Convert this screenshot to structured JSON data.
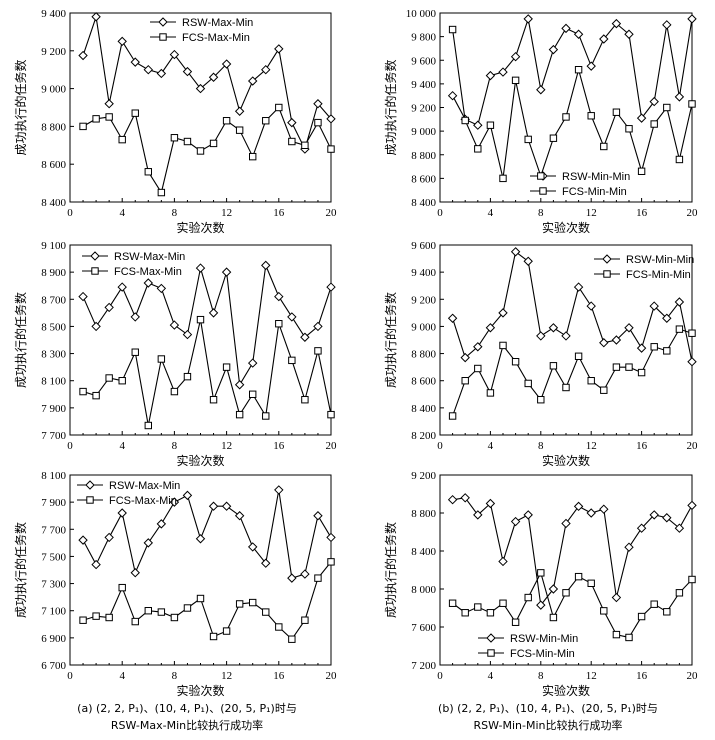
{
  "chart_data": [
    {
      "type": "line",
      "xlabel": "实验次数",
      "ylabel": "成功执行的任务数",
      "xlim": [
        0,
        20
      ],
      "xticks": [
        0,
        4,
        8,
        12,
        16,
        20
      ],
      "ylim": [
        8400,
        9400
      ],
      "yticks": [
        8400,
        8600,
        8800,
        9000,
        9200,
        9400
      ],
      "ytick_labels": [
        "8 400",
        "8 600",
        "8 800",
        "9 000",
        "9 200",
        "9 400"
      ],
      "x": [
        1,
        2,
        3,
        4,
        5,
        6,
        7,
        8,
        9,
        10,
        11,
        12,
        13,
        14,
        15,
        16,
        17,
        18,
        19,
        20
      ],
      "series": [
        {
          "name": "RSW-Max-Min",
          "marker": "diamond",
          "values": [
            9175,
            9380,
            8920,
            9250,
            9140,
            9100,
            9080,
            9180,
            9090,
            9000,
            9060,
            9130,
            8880,
            9040,
            9100,
            9210,
            8820,
            8680,
            8920,
            8840
          ]
        },
        {
          "name": "FCS-Max-Min",
          "marker": "square",
          "values": [
            8800,
            8840,
            8850,
            8730,
            8870,
            8560,
            8450,
            8740,
            8720,
            8670,
            8710,
            8830,
            8780,
            8640,
            8830,
            8900,
            8720,
            8700,
            8820,
            8680
          ]
        }
      ]
    },
    {
      "type": "line",
      "xlabel": "实验次数",
      "ylabel": "成功执行的任务数",
      "xlim": [
        0,
        20
      ],
      "xticks": [
        0,
        4,
        8,
        12,
        16,
        20
      ],
      "ylim": [
        8400,
        10000
      ],
      "yticks": [
        8400,
        8600,
        8800,
        9000,
        9200,
        9400,
        9600,
        9800,
        10000
      ],
      "ytick_labels": [
        "8 400",
        "8 600",
        "8 800",
        "9 000",
        "9 200",
        "9 400",
        "9 600",
        "9 800",
        "10 000"
      ],
      "x": [
        1,
        2,
        3,
        4,
        5,
        6,
        7,
        8,
        9,
        10,
        11,
        12,
        13,
        14,
        15,
        16,
        17,
        18,
        19,
        20
      ],
      "series": [
        {
          "name": "RSW-Min-Min",
          "marker": "diamond",
          "values": [
            9300,
            9100,
            9050,
            9470,
            9500,
            9630,
            9950,
            9350,
            9690,
            9870,
            9820,
            9550,
            9780,
            9910,
            9820,
            9110,
            9250,
            9900,
            9290,
            9950
          ]
        },
        {
          "name": "FCS-Min-Min",
          "marker": "square",
          "values": [
            9860,
            9090,
            8850,
            9050,
            8600,
            9430,
            8930,
            8620,
            8940,
            9120,
            9520,
            9130,
            8870,
            9160,
            9020,
            8660,
            9060,
            9200,
            8760,
            9230
          ]
        }
      ]
    },
    {
      "type": "line",
      "xlabel": "实验次数",
      "ylabel": "成功执行的任务数",
      "xlim": [
        0,
        20
      ],
      "xticks": [
        0,
        4,
        8,
        12,
        16,
        20
      ],
      "ylim": [
        7700,
        9100
      ],
      "yticks": [
        7700,
        7900,
        8100,
        8300,
        8500,
        8700,
        8900,
        9100
      ],
      "ytick_labels": [
        "7 700",
        "7 900",
        "8 100",
        "8 300",
        "8 500",
        "8 700",
        "8 900",
        "9 100"
      ],
      "x": [
        1,
        2,
        3,
        4,
        5,
        6,
        7,
        8,
        9,
        10,
        11,
        12,
        13,
        14,
        15,
        16,
        17,
        18,
        19,
        20
      ],
      "series": [
        {
          "name": "RSW-Max-Min",
          "marker": "diamond",
          "values": [
            8720,
            8500,
            8640,
            8790,
            8570,
            8820,
            8780,
            8510,
            8440,
            8930,
            8600,
            8900,
            8070,
            8230,
            8950,
            8720,
            8570,
            8420,
            8500,
            8790
          ]
        },
        {
          "name": "FCS-Max-Min",
          "marker": "square",
          "values": [
            8020,
            7990,
            8120,
            8100,
            8310,
            7770,
            8260,
            8020,
            8130,
            8550,
            7960,
            8200,
            7850,
            8000,
            7840,
            8520,
            8250,
            7960,
            8320,
            7850
          ]
        }
      ]
    },
    {
      "type": "line",
      "xlabel": "实验次数",
      "ylabel": "成功执行的任务数",
      "xlim": [
        0,
        20
      ],
      "xticks": [
        0,
        4,
        8,
        12,
        16,
        20
      ],
      "ylim": [
        8200,
        9600
      ],
      "yticks": [
        8200,
        8400,
        8600,
        8800,
        9000,
        9200,
        9400,
        9600
      ],
      "ytick_labels": [
        "8 200",
        "8 400",
        "8 600",
        "8 800",
        "9 000",
        "9 200",
        "9 400",
        "9 600"
      ],
      "x": [
        1,
        2,
        3,
        4,
        5,
        6,
        7,
        8,
        9,
        10,
        11,
        12,
        13,
        14,
        15,
        16,
        17,
        18,
        19,
        20
      ],
      "series": [
        {
          "name": "RSW-Min-Min",
          "marker": "diamond",
          "values": [
            9060,
            8770,
            8850,
            8990,
            9100,
            9550,
            9480,
            8930,
            8990,
            8930,
            9290,
            9150,
            8880,
            8900,
            8990,
            8840,
            9150,
            9060,
            9180,
            8740
          ]
        },
        {
          "name": "FCS-Min-Min",
          "marker": "square",
          "values": [
            8340,
            8600,
            8690,
            8510,
            8860,
            8740,
            8580,
            8460,
            8710,
            8550,
            8780,
            8600,
            8530,
            8700,
            8700,
            8660,
            8850,
            8820,
            8980,
            8950
          ]
        }
      ]
    },
    {
      "type": "line",
      "xlabel": "实验次数",
      "ylabel": "成功执行的任务数",
      "xlim": [
        0,
        20
      ],
      "xticks": [
        0,
        4,
        8,
        12,
        16,
        20
      ],
      "ylim": [
        6700,
        8100
      ],
      "yticks": [
        6700,
        6900,
        7100,
        7300,
        7500,
        7700,
        7900,
        8100
      ],
      "ytick_labels": [
        "6 700",
        "6 900",
        "7 100",
        "7 300",
        "7 500",
        "7 700",
        "7 900",
        "8 100"
      ],
      "x": [
        1,
        2,
        3,
        4,
        5,
        6,
        7,
        8,
        9,
        10,
        11,
        12,
        13,
        14,
        15,
        16,
        17,
        18,
        19,
        20
      ],
      "series": [
        {
          "name": "RSW-Max-Min",
          "marker": "diamond",
          "values": [
            7620,
            7440,
            7640,
            7820,
            7380,
            7600,
            7740,
            7900,
            7950,
            7630,
            7870,
            7870,
            7800,
            7570,
            7450,
            7990,
            7340,
            7370,
            7800,
            7640
          ]
        },
        {
          "name": "FCS-Max-Min",
          "marker": "square",
          "values": [
            7030,
            7060,
            7050,
            7270,
            7020,
            7100,
            7090,
            7050,
            7120,
            7190,
            6910,
            6950,
            7150,
            7160,
            7090,
            6980,
            6890,
            7030,
            7340,
            7460
          ]
        }
      ]
    },
    {
      "type": "line",
      "xlabel": "实验次数",
      "ylabel": "成功执行的任务数",
      "xlim": [
        0,
        20
      ],
      "xticks": [
        0,
        4,
        8,
        12,
        16,
        20
      ],
      "ylim": [
        7200,
        9200
      ],
      "yticks": [
        7200,
        7600,
        8000,
        8400,
        8800,
        9200
      ],
      "ytick_labels": [
        "7 200",
        "7 600",
        "8 000",
        "8 400",
        "8 800",
        "9 200"
      ],
      "x": [
        1,
        2,
        3,
        4,
        5,
        6,
        7,
        8,
        9,
        10,
        11,
        12,
        13,
        14,
        15,
        16,
        17,
        18,
        19,
        20
      ],
      "series": [
        {
          "name": "RSW-Min-Min",
          "marker": "diamond",
          "values": [
            8940,
            8960,
            8780,
            8900,
            8290,
            8710,
            8780,
            7830,
            8000,
            8690,
            8870,
            8800,
            8840,
            7910,
            8440,
            8640,
            8780,
            8750,
            8640,
            8880
          ]
        },
        {
          "name": "FCS-Min-Min",
          "marker": "square",
          "values": [
            7850,
            7750,
            7810,
            7750,
            7850,
            7650,
            7910,
            8170,
            7700,
            7960,
            8130,
            8060,
            7770,
            7520,
            7490,
            7710,
            7840,
            7760,
            7960,
            8100
          ]
        }
      ]
    }
  ],
  "captions": {
    "left_line1": "(a) (2, 2, P₁)、(10, 4, P₁)、(20, 5, P₁)时与",
    "left_line2": "RSW-Max-Min比较执行成功率",
    "right_line1": "(b) (2, 2, P₁)、(10, 4, P₁)、(20, 5, P₁)时与",
    "right_line2": "RSW-Min-Min比较执行成功率"
  }
}
